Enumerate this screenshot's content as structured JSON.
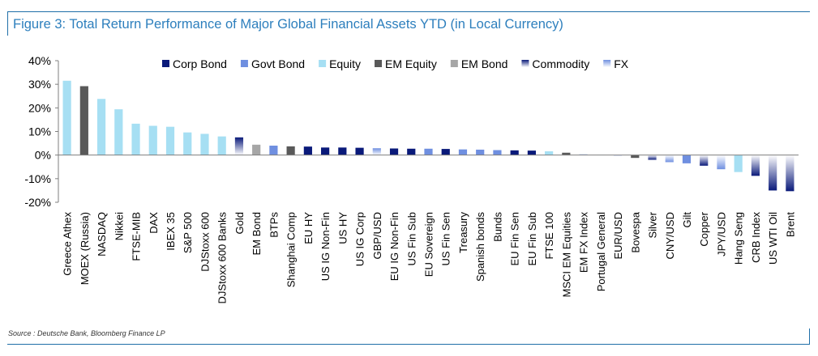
{
  "title": "Figure 3: Total Return Performance of Major Global Financial Assets YTD (in Local Currency)",
  "source": "Source : Deutsche Bank, Bloomberg Finance LP",
  "chart_data": {
    "type": "bar",
    "ylim": [
      -20,
      40
    ],
    "yticks": [
      -20,
      -10,
      0,
      10,
      20,
      30,
      40
    ],
    "ytick_labels": [
      "-20%",
      "-10%",
      "0%",
      "10%",
      "20%",
      "30%",
      "40%"
    ],
    "legend_placement": "top",
    "series_styles": [
      {
        "name": "Corp Bond",
        "color": "#0a1a7a",
        "gradient": false
      },
      {
        "name": "Govt Bond",
        "color": "#6f8fe0",
        "gradient": false
      },
      {
        "name": "Equity",
        "color": "#a6dff3",
        "gradient": false
      },
      {
        "name": "EM Equity",
        "color": "#595959",
        "gradient": false
      },
      {
        "name": "EM Bond",
        "color": "#a6a6a6",
        "gradient": false
      },
      {
        "name": "Commodity",
        "color": "#0a1a7a",
        "gradient": true
      },
      {
        "name": "FX",
        "color": "#6f8fe0",
        "gradient": true
      }
    ],
    "bars": [
      {
        "label": "Greece Athex",
        "value": 31.5,
        "series": "Equity"
      },
      {
        "label": "MOEX (Russia)",
        "value": 29.2,
        "series": "EM Equity"
      },
      {
        "label": "NASDAQ",
        "value": 23.8,
        "series": "Equity"
      },
      {
        "label": "Nikkei",
        "value": 19.4,
        "series": "Equity"
      },
      {
        "label": "FTSE-MIB",
        "value": 13.3,
        "series": "Equity"
      },
      {
        "label": "DAX",
        "value": 12.4,
        "series": "Equity"
      },
      {
        "label": "IBEX 35",
        "value": 12.0,
        "series": "Equity"
      },
      {
        "label": "S&P 500",
        "value": 9.6,
        "series": "Equity"
      },
      {
        "label": "DJStoxx 600",
        "value": 9.0,
        "series": "Equity"
      },
      {
        "label": "DJStoxx 600 Banks",
        "value": 7.9,
        "series": "Equity"
      },
      {
        "label": "Gold",
        "value": 7.5,
        "series": "Commodity"
      },
      {
        "label": "EM Bond",
        "value": 4.4,
        "series": "EM Bond"
      },
      {
        "label": "BTPs",
        "value": 4.0,
        "series": "Govt Bond"
      },
      {
        "label": "Shanghai Comp",
        "value": 3.7,
        "series": "EM Equity"
      },
      {
        "label": "EU HY",
        "value": 3.6,
        "series": "Corp Bond"
      },
      {
        "label": "US IG Non-Fin",
        "value": 3.2,
        "series": "Corp Bond"
      },
      {
        "label": "US HY",
        "value": 3.2,
        "series": "Corp Bond"
      },
      {
        "label": "US IG Corp",
        "value": 3.1,
        "series": "Corp Bond"
      },
      {
        "label": "GBP/USD",
        "value": 2.9,
        "series": "FX"
      },
      {
        "label": "EU IG Non-Fin",
        "value": 2.8,
        "series": "Corp Bond"
      },
      {
        "label": "US Fin Sub",
        "value": 2.7,
        "series": "Corp Bond"
      },
      {
        "label": "EU Sovereign",
        "value": 2.7,
        "series": "Govt Bond"
      },
      {
        "label": "US Fin Sen",
        "value": 2.6,
        "series": "Corp Bond"
      },
      {
        "label": "Treasury",
        "value": 2.4,
        "series": "Govt Bond"
      },
      {
        "label": "Spanish bonds",
        "value": 2.3,
        "series": "Govt Bond"
      },
      {
        "label": "Bunds",
        "value": 2.1,
        "series": "Govt Bond"
      },
      {
        "label": "EU Fin Sen",
        "value": 2.0,
        "series": "Corp Bond"
      },
      {
        "label": "EU Fin Sub",
        "value": 1.9,
        "series": "Corp Bond"
      },
      {
        "label": "FTSE 100",
        "value": 1.6,
        "series": "Equity"
      },
      {
        "label": "MSCI EM Equities",
        "value": 1.0,
        "series": "EM Equity"
      },
      {
        "label": "EM FX Index",
        "value": 0.3,
        "series": "FX"
      },
      {
        "label": "Portugal General",
        "value": 0.1,
        "series": "Equity"
      },
      {
        "label": "EUR/USD",
        "value": -0.1,
        "series": "FX"
      },
      {
        "label": "Bovespa",
        "value": -1.2,
        "series": "EM Equity"
      },
      {
        "label": "Silver",
        "value": -2.0,
        "series": "Commodity"
      },
      {
        "label": "CNY/USD",
        "value": -3.0,
        "series": "FX"
      },
      {
        "label": "Gilt",
        "value": -3.5,
        "series": "Govt Bond"
      },
      {
        "label": "Copper",
        "value": -4.5,
        "series": "Commodity"
      },
      {
        "label": "JPY/USD",
        "value": -6.0,
        "series": "FX"
      },
      {
        "label": "Hang Seng",
        "value": -7.2,
        "series": "Equity"
      },
      {
        "label": "CRB Index",
        "value": -8.8,
        "series": "Commodity"
      },
      {
        "label": "US WTI Oil",
        "value": -15.0,
        "series": "Commodity"
      },
      {
        "label": "Brent",
        "value": -15.3,
        "series": "Commodity"
      }
    ]
  }
}
